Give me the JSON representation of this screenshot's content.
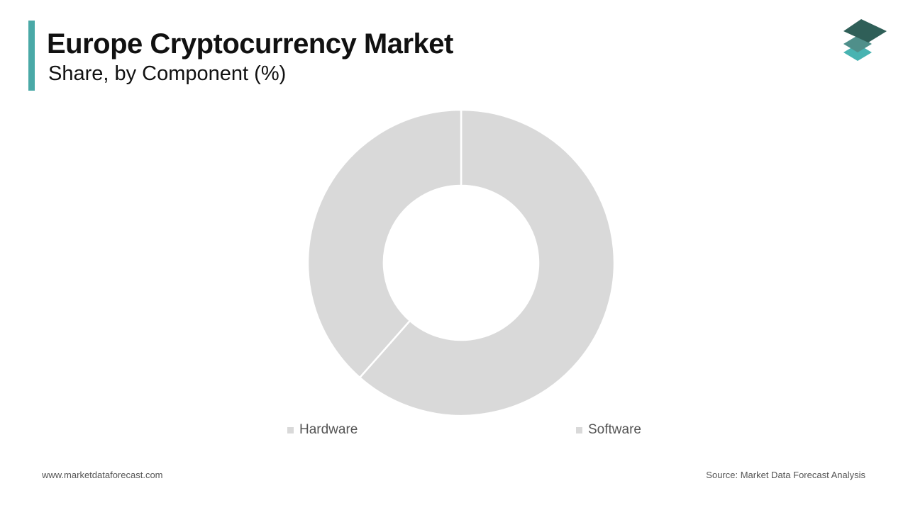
{
  "header": {
    "title": "Europe Cryptocurrency Market",
    "subtitle": "Share, by Component (%)"
  },
  "colors": {
    "accent": "#4aa9a7",
    "slice": "#d9d9d9"
  },
  "chart_data": {
    "type": "pie",
    "variant": "donut",
    "categories": [
      "Hardware",
      "Software"
    ],
    "values": [
      61.5,
      38.5
    ],
    "colors": [
      "#d9d9d9",
      "#d9d9d9"
    ],
    "legend": "bottom",
    "start_angle": "top, clockwise"
  },
  "footer": {
    "website": "www.marketdataforecast.com",
    "source": "Source: Market Data Forecast Analysis"
  }
}
